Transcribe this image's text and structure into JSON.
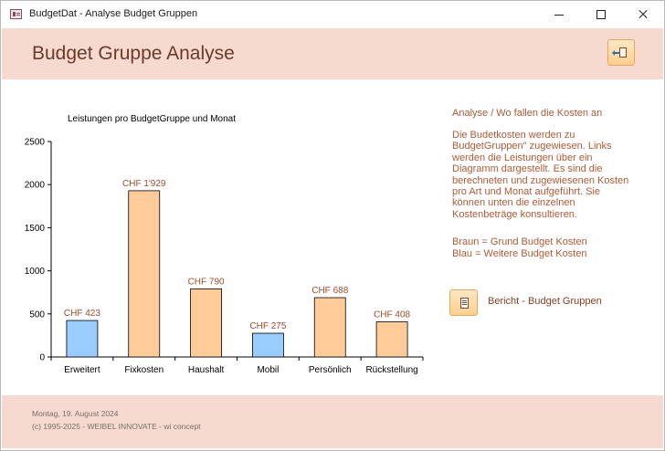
{
  "window": {
    "title": "BudgetDat - Analyse Budget Gruppen",
    "icon": "database-form-icon",
    "controls": [
      "minimize-icon",
      "maximize-icon",
      "close-icon"
    ]
  },
  "header": {
    "title": "Budget Gruppe Analyse",
    "exit_icon": "exit-door-icon"
  },
  "chart_data": {
    "type": "bar",
    "title": "Leistungen pro BudgetGruppe und Monat",
    "xlabel": "",
    "ylabel": "",
    "ylim": [
      0,
      2500
    ],
    "yticks": [
      0,
      500,
      1000,
      1500,
      2000,
      2500
    ],
    "categories": [
      "Erweitert",
      "Fixkosten",
      "Haushalt",
      "Mobil",
      "Persönlich",
      "Rückstellung"
    ],
    "values": [
      423,
      1929,
      790,
      275,
      688,
      408
    ],
    "labels": [
      "CHF 423",
      "CHF 1'929",
      "CHF 790",
      "CHF 275",
      "CHF 688",
      "CHF 408"
    ],
    "bar_colors": [
      "#99ccff",
      "#ffcc99",
      "#ffcc99",
      "#99ccff",
      "#ffcc99",
      "#ffcc99"
    ],
    "label_color": "#a34a2a",
    "grid": false,
    "legend": "none"
  },
  "info": {
    "heading": "Analyse / Wo fallen die Kosten an",
    "text": "Die Budetkosten werden zu\nBudgetGruppen\" zugewiesen. Links\nwerden die Leistungen über ein\nDiagramm dargestellt. Es sind die\nberechneten und zugewiesenen Kosten\npro Art und Monat aufgeführt. Sie\nkönnen unten die einzelnen\nKostenbeträge konsultieren.",
    "legend_brown": "Braun = Grund Budget Kosten",
    "legend_blue": "Blau = Weitere Budget Kosten"
  },
  "report": {
    "label": "Bericht - Budget Gruppen",
    "icon": "report-document-icon"
  },
  "footer": {
    "date": "Montag, 19. August 2024",
    "copyright": "(c) 1995-2025 - WEIBEL INNOVATE - wi concept"
  },
  "colors": {
    "band": "#f6d9cf",
    "accent_text": "#b05a34",
    "title_text": "#6b3a28"
  }
}
